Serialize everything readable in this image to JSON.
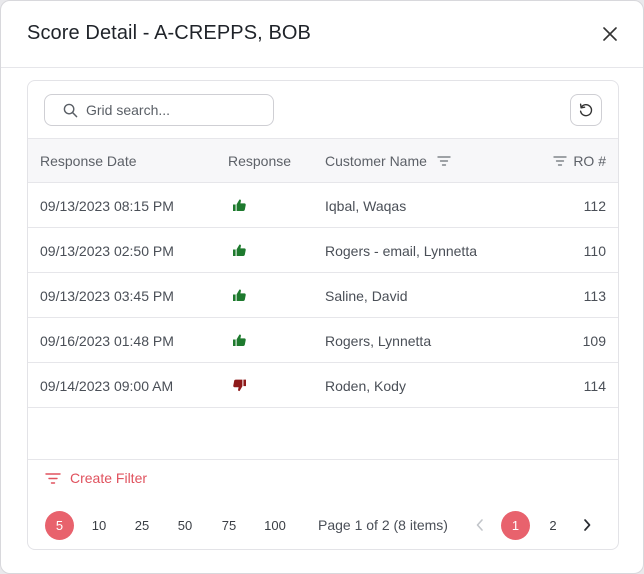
{
  "modal": {
    "title": "Score Detail - A-CREPPS, BOB"
  },
  "search": {
    "placeholder": "Grid search..."
  },
  "grid": {
    "columns": {
      "response_date": "Response Date",
      "response": "Response",
      "customer_name": "Customer Name",
      "ro": "RO #"
    },
    "rows": [
      {
        "date": "09/13/2023 08:15 PM",
        "response": "thumbs-up",
        "customer": "Iqbal, Waqas",
        "ro": "112"
      },
      {
        "date": "09/13/2023 02:50 PM",
        "response": "thumbs-up",
        "customer": "Rogers - email, Lynnetta",
        "ro": "110"
      },
      {
        "date": "09/13/2023 03:45 PM",
        "response": "thumbs-up",
        "customer": "Saline, David",
        "ro": "113"
      },
      {
        "date": "09/16/2023 01:48 PM",
        "response": "thumbs-up",
        "customer": "Rogers, Lynnetta",
        "ro": "109"
      },
      {
        "date": "09/14/2023 09:00 AM",
        "response": "thumbs-down",
        "customer": "Roden, Kody",
        "ro": "114"
      }
    ]
  },
  "footer": {
    "create_filter": "Create Filter",
    "page_sizes": [
      "5",
      "10",
      "25",
      "50",
      "75",
      "100"
    ],
    "selected_page_size": "5",
    "page_info": "Page 1 of 2 (8 items)",
    "pages": [
      "1",
      "2"
    ],
    "current_page": "1"
  },
  "colors": {
    "accent": "#e8626d",
    "thumbs_up": "#1e7a2e",
    "thumbs_down": "#8e1a1a"
  }
}
